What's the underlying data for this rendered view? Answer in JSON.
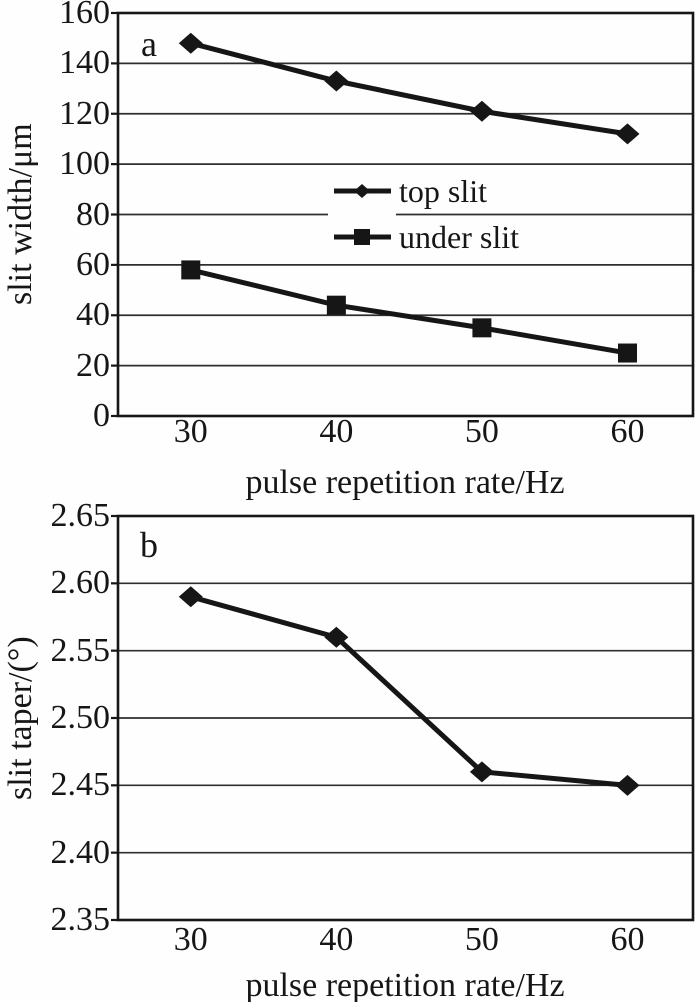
{
  "figure": {
    "description": "two stacked line charts, panels a and b",
    "ink_color": "#161616",
    "grid_color": "#2e2e2e",
    "background": "#fefefe"
  },
  "chart_data": [
    {
      "id": "a",
      "type": "line",
      "panel_label": "a",
      "xlabel": "pulse repetition rate/Hz",
      "ylabel": "slit width/μm",
      "xlim": [
        25,
        64.5
      ],
      "ylim": [
        0,
        160
      ],
      "x": [
        30,
        40,
        50,
        60
      ],
      "xtick_values": [
        30,
        40,
        50,
        60
      ],
      "xtick_labels": [
        "30",
        "40",
        "50",
        "60"
      ],
      "ytick_values": [
        0,
        20,
        40,
        60,
        80,
        100,
        120,
        140,
        160
      ],
      "ytick_labels": [
        "0",
        "20",
        "40",
        "60",
        "80",
        "100",
        "120",
        "140",
        "160"
      ],
      "grid": true,
      "legend_position": "inside upper-middle",
      "series": [
        {
          "name": "top slit",
          "marker": "diamond",
          "values": [
            148,
            133,
            121,
            112
          ]
        },
        {
          "name": "under slit",
          "marker": "square",
          "values": [
            58,
            44,
            35,
            25
          ]
        }
      ]
    },
    {
      "id": "b",
      "type": "line",
      "panel_label": "b",
      "xlabel": "pulse repetition rate/Hz",
      "ylabel": "slit taper/(°)",
      "xlim": [
        25,
        64.5
      ],
      "ylim": [
        2.35,
        2.65
      ],
      "x": [
        30,
        40,
        50,
        60
      ],
      "xtick_values": [
        30,
        40,
        50,
        60
      ],
      "xtick_labels": [
        "30",
        "40",
        "50",
        "60"
      ],
      "ytick_values": [
        2.35,
        2.4,
        2.45,
        2.5,
        2.55,
        2.6,
        2.65
      ],
      "ytick_labels": [
        "2.35",
        "2.40",
        "2.45",
        "2.50",
        "2.55",
        "2.60",
        "2.65"
      ],
      "grid": true,
      "legend_position": "none",
      "series": [
        {
          "name": "slit taper",
          "marker": "diamond",
          "values": [
            2.59,
            2.56,
            2.46,
            2.45
          ]
        }
      ]
    }
  ]
}
